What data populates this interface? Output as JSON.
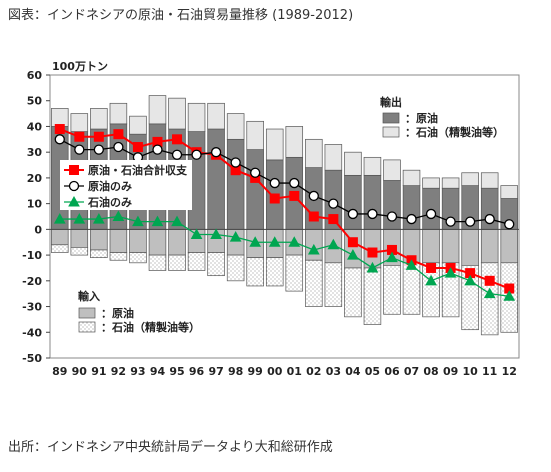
{
  "page": {
    "title": "図表：インドネシアの原油・石油貿易量推移 (1989-2012)",
    "source": "出所：インドネシア中央統計局データより大和総研作成"
  },
  "chart_data": {
    "type": "bar",
    "unit": "100万トン",
    "ylim": [
      -50,
      60
    ],
    "yticks": [
      -50,
      -40,
      -30,
      -20,
      -10,
      0,
      10,
      20,
      30,
      40,
      50,
      60
    ],
    "categories": [
      "89",
      "90",
      "91",
      "92",
      "93",
      "94",
      "95",
      "96",
      "97",
      "98",
      "99",
      "00",
      "01",
      "02",
      "03",
      "04",
      "05",
      "06",
      "07",
      "08",
      "09",
      "10",
      "11",
      "12"
    ],
    "export_group_label": "輸出",
    "import_group_label": "輸入",
    "bar_series": [
      {
        "name": "原油",
        "group": "export",
        "color": "#7f7f7f",
        "values": [
          40,
          38,
          39,
          41,
          37,
          41,
          39,
          38,
          39,
          35,
          31,
          27,
          28,
          24,
          23,
          21,
          21,
          19,
          17,
          16,
          16,
          17,
          16,
          12
        ]
      },
      {
        "name": "石油（精製油等）",
        "group": "export",
        "color": "#e6e6e6",
        "values": [
          7,
          7,
          8,
          8,
          7,
          11,
          12,
          11,
          10,
          10,
          11,
          12,
          12,
          11,
          10,
          9,
          7,
          8,
          6,
          4,
          4,
          5,
          6,
          5
        ]
      },
      {
        "name": "原油",
        "group": "import",
        "color": "#bfbfbf",
        "values": [
          -6,
          -7,
          -8,
          -9,
          -9,
          -10,
          -10,
          -9,
          -9,
          -10,
          -11,
          -11,
          -10,
          -12,
          -13,
          -15,
          -15,
          -14,
          -13,
          -13,
          -13,
          -14,
          -13,
          -13
        ]
      },
      {
        "name": "石油（精製油等）",
        "group": "import",
        "color": "#f5f5f5",
        "values": [
          -3,
          -3,
          -3,
          -3,
          -4,
          -6,
          -6,
          -7,
          -9,
          -10,
          -11,
          -11,
          -14,
          -18,
          -17,
          -19,
          -22,
          -19,
          -20,
          -21,
          -21,
          -25,
          -28,
          -27
        ]
      }
    ],
    "line_series": [
      {
        "name": "原油・石油合計収支",
        "color": "#ff0000",
        "marker": "square",
        "values": [
          39,
          36,
          36,
          37,
          32,
          34,
          35,
          30,
          29,
          23,
          20,
          12,
          13,
          5,
          4,
          -5,
          -9,
          -8,
          -12,
          -15,
          -15,
          -17,
          -20,
          -23
        ]
      },
      {
        "name": "原油のみ",
        "color": "#000000",
        "marker": "circle",
        "values": [
          35,
          31,
          31,
          32,
          28,
          31,
          29,
          29,
          30,
          26,
          22,
          18,
          18,
          13,
          10,
          6,
          6,
          5,
          4,
          6,
          3,
          3,
          4,
          2
        ]
      },
      {
        "name": "石油のみ",
        "color": "#00a651",
        "marker": "triangle",
        "values": [
          4,
          4,
          4,
          5,
          3,
          3,
          3,
          -2,
          -2,
          -3,
          -5,
          -5,
          -5,
          -8,
          -6,
          -10,
          -15,
          -11,
          -14,
          -20,
          -17,
          -20,
          -25,
          -26
        ]
      }
    ]
  }
}
